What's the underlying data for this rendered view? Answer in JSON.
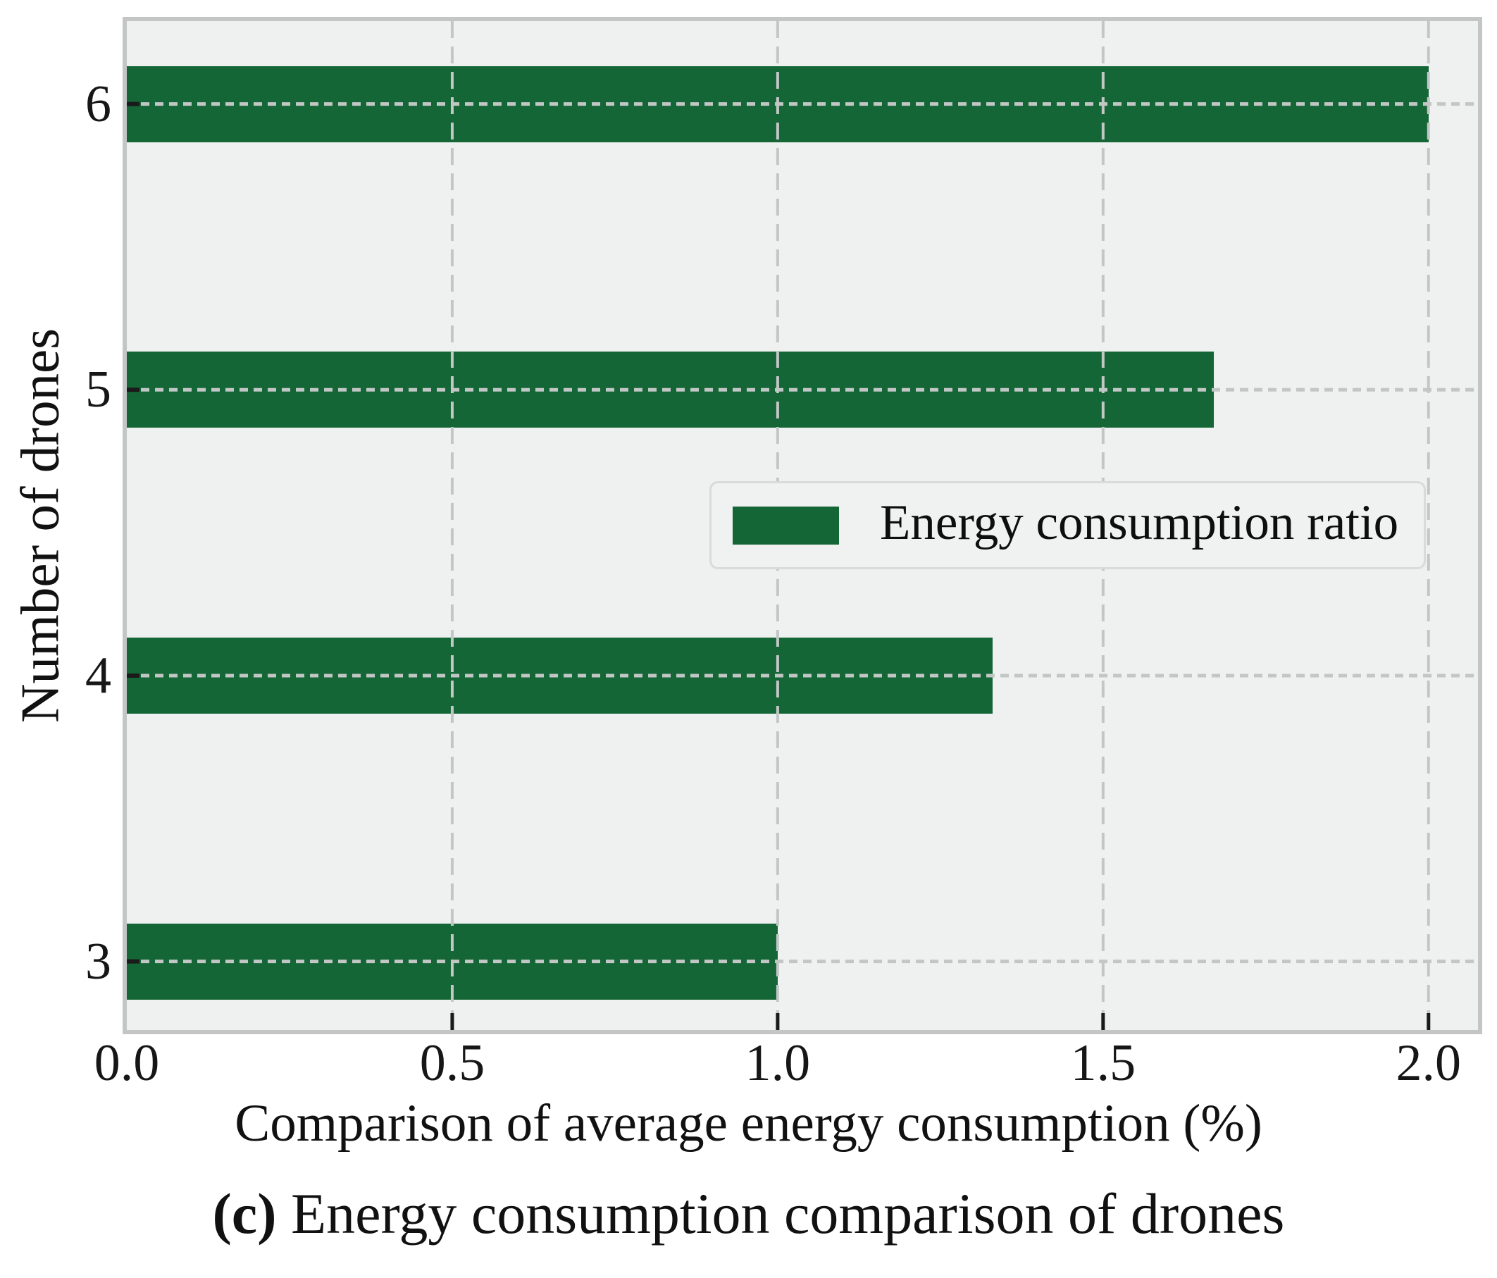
{
  "figure": {
    "caption_bold": "(c)",
    "caption_rest": " Energy consumption comparison of drones"
  },
  "chart_data": {
    "type": "bar",
    "orientation": "horizontal",
    "xlabel": "Comparison of average energy consumption (%)",
    "ylabel": "Number of drones",
    "categories": [
      6,
      5,
      4,
      3
    ],
    "series": [
      {
        "name": "Energy consumption ratio",
        "values": [
          2.0,
          1.67,
          1.33,
          1.0
        ]
      }
    ],
    "xticks": [
      "0.0",
      "0.5",
      "1.0",
      "1.5",
      "2.0"
    ],
    "xtick_values": [
      0,
      0.5,
      1.0,
      1.5,
      2.0
    ],
    "ytick_labels": [
      "6",
      "5",
      "4",
      "3"
    ],
    "xlim": [
      0,
      2.076
    ],
    "ylim": [
      2.76,
      6.29
    ],
    "grid": "dashed, drawn above bars",
    "legend": {
      "label": "Energy consumption ratio",
      "location": "center right"
    },
    "colors": {
      "bar": "#156636",
      "plot_bg": "#eff0f0",
      "grid": "#c2c7c6",
      "spine": "#c4c6c6",
      "tick_mark": "#1a1a1a",
      "text": "#111111",
      "legend_bg": "#f0f1f1",
      "legend_border": "#d8dbdb"
    }
  }
}
